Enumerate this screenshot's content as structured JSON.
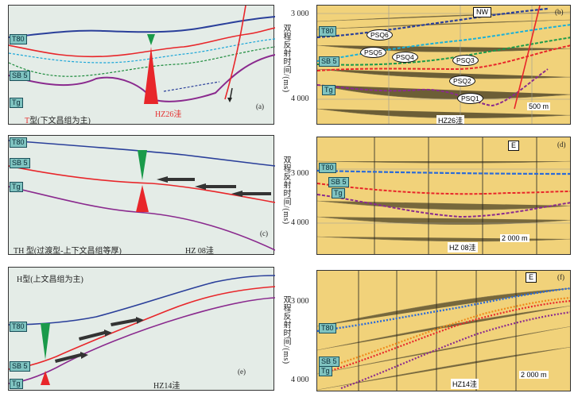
{
  "panel_a": {
    "tag": "(a)",
    "labels": [
      "T80",
      "SB 5",
      "Tg"
    ],
    "title_prefix": "T",
    "title_rest": "型(下文昌组为主)",
    "sag": "HZ26洼"
  },
  "panel_b": {
    "tag": "(b)",
    "direction": "NW",
    "ticks": [
      "3 000",
      "4 000"
    ],
    "axis": "双程反射时间/(ms)",
    "labels": [
      "T80",
      "SB 5",
      "Tg"
    ],
    "psq": [
      "PSQ6",
      "PSQ5",
      "PSQ4",
      "PSQ3",
      "PSQ2",
      "PSQ1"
    ],
    "well": "HZ26洼",
    "scale": "500 m"
  },
  "panel_c": {
    "tag": "(c)",
    "labels": [
      "T80",
      "SB 5",
      "Tg"
    ],
    "title": "TH 型(过渡型-上下文昌组等厚)",
    "sag": "HZ 08洼"
  },
  "panel_d": {
    "tag": "(d)",
    "direction": "E",
    "ticks": [
      "3 000",
      "4 000"
    ],
    "axis": "双程反射时间/(ms)",
    "labels": [
      "T80",
      "SB 5",
      "Tg"
    ],
    "well": "HZ 08洼",
    "scale": "2 000 m"
  },
  "panel_e": {
    "tag": "(e)",
    "labels": [
      "T80",
      "SB 5",
      "Tg"
    ],
    "title": "H型(上文昌组为主)",
    "sag": "HZ14洼"
  },
  "panel_f": {
    "tag": "(f)",
    "direction": "E",
    "ticks": [
      "3 000",
      "4 000"
    ],
    "axis": "双程反射时间/(ms)",
    "labels": [
      "T80",
      "SB 5",
      "Tg"
    ],
    "well": "HZ14洼",
    "scale": "2 000 m"
  },
  "colors": {
    "t80": "#2a3f9a",
    "sb5": "#e8262a",
    "tg": "#8a2a8e",
    "teal_fill": "#7fc3c0",
    "depocenter_up": "#1a9a4a",
    "depocenter_down": "#e8262a"
  }
}
